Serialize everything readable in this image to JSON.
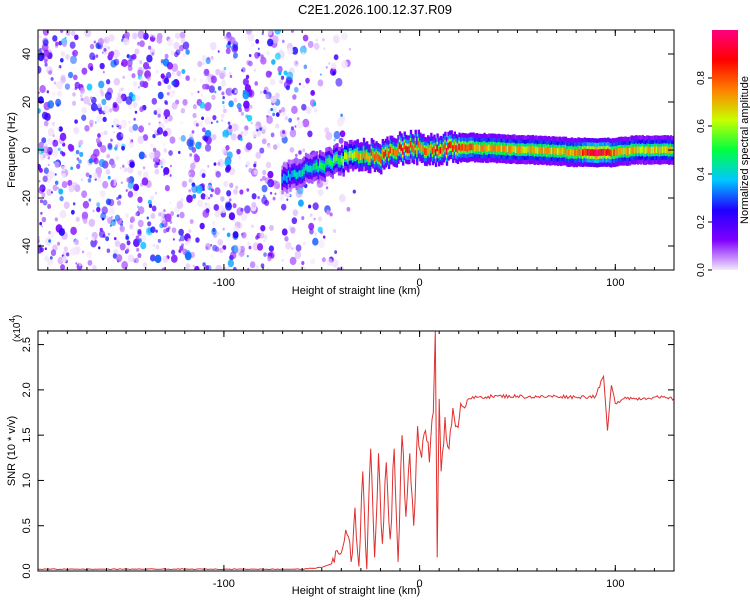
{
  "title": "C2E1.2026.100.12.37.R09",
  "chart_data": [
    {
      "type": "heatmap",
      "xlabel": "Height of straight line (km)",
      "ylabel": "Frequency (Hz)",
      "xlim": [
        -195,
        130
      ],
      "ylim": [
        -50,
        50
      ],
      "xticks": [
        -100,
        0,
        100
      ],
      "xtick_labels": [
        "-100",
        "0",
        "100"
      ],
      "yticks": [
        -40,
        -20,
        0,
        20,
        40
      ],
      "ytick_labels": [
        "-40",
        "-20",
        "0",
        "20",
        "40"
      ],
      "colorbar": {
        "label": "Normalized spectral amplitude",
        "range": [
          0.0,
          1.0
        ],
        "ticks": [
          0.0,
          0.2,
          0.4,
          0.6,
          0.8
        ],
        "tick_labels": [
          "0.0",
          "0.2",
          "0.4",
          "0.6",
          "0.8"
        ],
        "colormap": [
          "#f4e8fb",
          "#7f00ff",
          "#2000ff",
          "#00c8ff",
          "#00ff40",
          "#c8ff00",
          "#ff8000",
          "#ff0000",
          "#ff0080"
        ]
      },
      "noise_region_x": [
        -195,
        -50
      ],
      "ridge": [
        {
          "x": -70,
          "f": -12,
          "a": 0.35
        },
        {
          "x": -60,
          "f": -9,
          "a": 0.45
        },
        {
          "x": -50,
          "f": -7,
          "a": 0.5
        },
        {
          "x": -40,
          "f": -4,
          "a": 0.6
        },
        {
          "x": -30,
          "f": -2,
          "a": 0.75
        },
        {
          "x": -20,
          "f": -3,
          "a": 0.85
        },
        {
          "x": -15,
          "f": -1,
          "a": 0.8
        },
        {
          "x": -8,
          "f": 1,
          "a": 0.95
        },
        {
          "x": 0,
          "f": 1,
          "a": 0.8
        },
        {
          "x": 10,
          "f": 0,
          "a": 0.85
        },
        {
          "x": 15,
          "f": 1,
          "a": 0.95
        },
        {
          "x": 30,
          "f": 1,
          "a": 0.75
        },
        {
          "x": 60,
          "f": 0,
          "a": 0.7
        },
        {
          "x": 80,
          "f": -1,
          "a": 0.75
        },
        {
          "x": 90,
          "f": -1,
          "a": 1.0
        },
        {
          "x": 100,
          "f": -1,
          "a": 0.8
        },
        {
          "x": 110,
          "f": 0,
          "a": 0.7
        },
        {
          "x": 130,
          "f": 0,
          "a": 0.7
        }
      ],
      "colors": {
        "axis": "#000000"
      }
    },
    {
      "type": "line",
      "xlabel": "Height of straight line (km)",
      "ylabel": "SNR (10 * v/v)",
      "multiplier_label": "(x10",
      "multiplier_exp": "4",
      "multiplier_close": ")",
      "xlim": [
        -195,
        130
      ],
      "ylim": [
        0,
        2.65
      ],
      "xticks": [
        -100,
        0,
        100
      ],
      "xtick_labels": [
        "-100",
        "0",
        "100"
      ],
      "yticks": [
        0.0,
        0.5,
        1.0,
        1.5,
        2.0,
        2.5
      ],
      "ytick_labels": [
        "0.0",
        "0.5",
        "1.0",
        "1.5",
        "2.0",
        "2.5"
      ],
      "series": [
        {
          "color": "#e03030",
          "x": [
            -195,
            -150,
            -100,
            -60,
            -50,
            -45,
            -40,
            -37,
            -35,
            -33,
            -31,
            -29,
            -27,
            -25,
            -23,
            -21,
            -19,
            -17,
            -15,
            -13,
            -11,
            -9,
            -7,
            -5,
            -3,
            -1,
            1,
            3,
            5,
            7,
            8,
            9,
            10,
            11,
            13,
            15,
            17,
            19,
            21,
            23,
            25,
            30,
            40,
            50,
            60,
            70,
            80,
            90,
            94,
            96,
            98,
            100,
            105,
            110,
            120,
            130
          ],
          "y": [
            0.02,
            0.02,
            0.02,
            0.02,
            0.04,
            0.08,
            0.2,
            0.4,
            0.1,
            0.7,
            0.05,
            1.1,
            0.02,
            1.35,
            0.15,
            1.3,
            0.3,
            1.2,
            0.35,
            1.35,
            0.1,
            1.5,
            0.6,
            1.3,
            0.5,
            1.6,
            1.25,
            1.55,
            1.2,
            1.75,
            2.65,
            0.15,
            1.9,
            1.1,
            1.7,
            1.35,
            1.8,
            1.6,
            1.85,
            1.8,
            1.9,
            1.92,
            1.93,
            1.93,
            1.92,
            1.93,
            1.92,
            1.93,
            2.15,
            1.55,
            2.05,
            1.85,
            1.92,
            1.9,
            1.92,
            1.9
          ]
        }
      ],
      "colors": {
        "axis": "#000000"
      }
    }
  ]
}
